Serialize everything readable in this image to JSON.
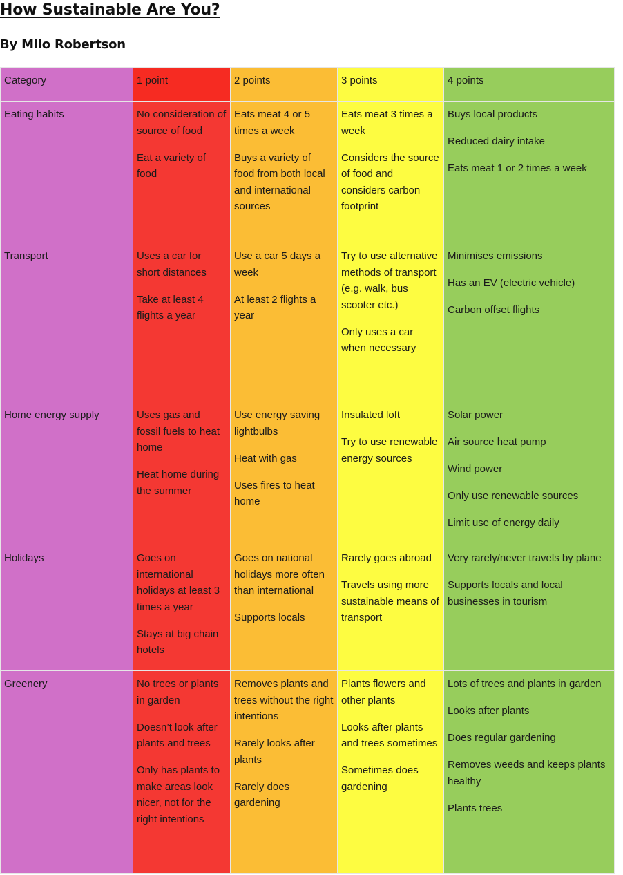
{
  "title": "How Sustainable Are You?",
  "author": "By Milo Robertson",
  "colors": {
    "category": "#d070c8",
    "one_point": "#f43833",
    "two_points": "#fbbd35",
    "three_points": "#fdfc41",
    "four_points": "#97cd5c"
  },
  "table": {
    "headers": [
      "Category",
      "1 point",
      "2 points",
      "3 points",
      "4 points"
    ],
    "rows": [
      {
        "category": "Eating habits",
        "cells": [
          [
            "No consideration of source of food",
            "Eat a variety of food"
          ],
          [
            " Eats meat 4 or 5 times a week",
            "Buys a variety of food from both local and international sources"
          ],
          [
            " Eats meat 3 times a week",
            "Considers the source of food and considers carbon footprint"
          ],
          [
            "Buys local products",
            "Reduced dairy intake",
            "Eats meat 1 or 2 times a week"
          ]
        ]
      },
      {
        "category": "Transport",
        "cells": [
          [
            " Uses a car for short distances",
            "Take at least 4 flights a year"
          ],
          [
            "Use a car 5 days a week",
            "At least 2 flights a year"
          ],
          [
            " Try to use alternative methods of transport (e.g. walk, bus scooter etc.)",
            "Only uses a car when necessary"
          ],
          [
            "Minimises emissions",
            "Has an EV (electric vehicle)",
            "Carbon offset flights"
          ]
        ]
      },
      {
        "category": "Home energy supply",
        "cells": [
          [
            "Uses gas and fossil fuels to heat home",
            "Heat home during the summer"
          ],
          [
            " Use energy saving lightbulbs",
            "Heat with gas",
            "Uses fires to heat home"
          ],
          [
            " Insulated loft",
            "Try to use renewable energy sources"
          ],
          [
            "Solar power",
            "Air source heat pump",
            "Wind power",
            "Only use renewable sources",
            "Limit use of energy daily"
          ]
        ]
      },
      {
        "category": "Holidays",
        "cells": [
          [
            " Goes on international holidays at least 3 times a year",
            "Stays at big chain hotels"
          ],
          [
            " Goes on national holidays more often than international",
            "Supports locals"
          ],
          [
            " Rarely goes abroad",
            "Travels using more sustainable means of transport"
          ],
          [
            "Very rarely/never travels by plane",
            "Supports locals and local businesses in tourism"
          ]
        ]
      },
      {
        "category": "Greenery",
        "cells": [
          [
            " No trees or plants in garden",
            "Doesn’t look after plants and trees",
            "Only has plants to make areas look nicer, not for the right intentions"
          ],
          [
            " Removes plants and trees without the right intentions",
            "Rarely looks after plants",
            "Rarely does gardening"
          ],
          [
            " Plants flowers and other plants",
            "Looks after plants and trees sometimes",
            "Sometimes does gardening"
          ],
          [
            "Lots of trees and plants in garden",
            "Looks after plants",
            "Does regular gardening",
            "Removes weeds and keeps plants healthy",
            "Plants trees"
          ]
        ]
      }
    ]
  }
}
